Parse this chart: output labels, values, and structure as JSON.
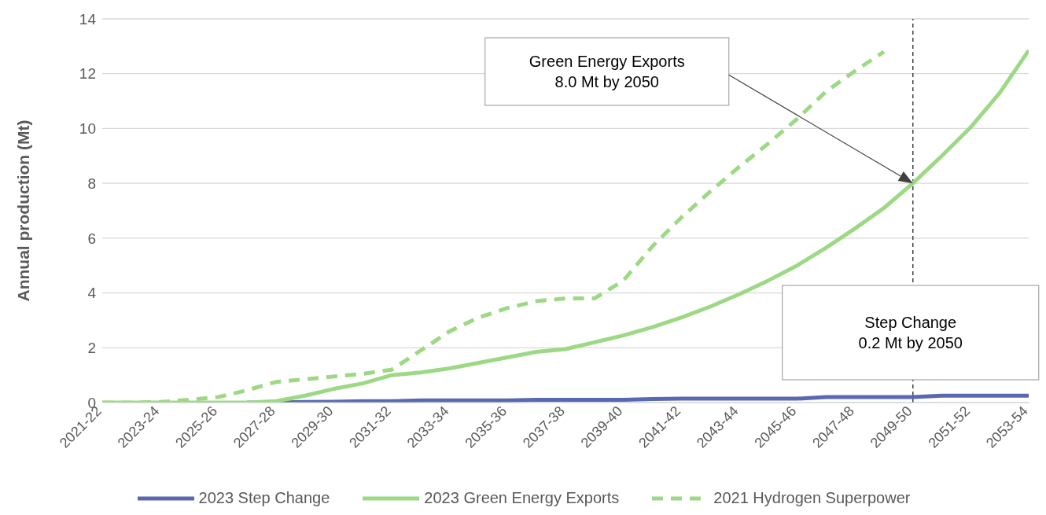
{
  "chart_data": {
    "type": "line",
    "ylabel": "Annual production (Mt)",
    "categories": [
      "2021-22",
      null,
      "2023-24",
      null,
      "2025-26",
      null,
      "2027-28",
      null,
      "2029-30",
      null,
      "2031-32",
      null,
      "2033-34",
      null,
      "2035-36",
      null,
      "2037-38",
      null,
      "2039-40",
      null,
      "2041-42",
      null,
      "2043-44",
      null,
      "2045-46",
      null,
      "2047-48",
      null,
      "2049-50",
      null,
      "2051-52",
      null,
      "2053-54"
    ],
    "series": [
      {
        "name": "2023 Step Change",
        "color": "#5a68b1",
        "line_style": "solid",
        "values": [
          null,
          null,
          null,
          null,
          null,
          0,
          0,
          0.02,
          0.03,
          0.05,
          0.05,
          0.08,
          0.08,
          0.08,
          0.08,
          0.1,
          0.1,
          0.1,
          0.1,
          0.13,
          0.14,
          0.14,
          0.14,
          0.14,
          0.14,
          0.2,
          0.2,
          0.2,
          0.2,
          0.25,
          0.25,
          0.25,
          0.25
        ]
      },
      {
        "name": "2023 Green Energy Exports",
        "color": "#9dd985",
        "line_style": "solid",
        "values": [
          0,
          0,
          0,
          0,
          0,
          0,
          0.05,
          0.25,
          0.5,
          0.7,
          1.0,
          1.1,
          1.25,
          1.45,
          1.65,
          1.85,
          1.95,
          2.2,
          2.45,
          2.75,
          3.1,
          3.5,
          3.95,
          4.45,
          5.0,
          5.65,
          6.35,
          7.1,
          8.0,
          9.0,
          10.05,
          11.3,
          12.85
        ]
      },
      {
        "name": "2021 Hydrogen Superpower",
        "color": "#9dd985",
        "line_style": "dashed",
        "values": [
          0,
          0,
          0.02,
          0.1,
          0.2,
          0.45,
          0.75,
          0.85,
          0.95,
          1.05,
          1.2,
          1.9,
          2.6,
          3.1,
          3.45,
          3.7,
          3.8,
          3.8,
          4.45,
          5.7,
          6.75,
          7.7,
          8.6,
          9.45,
          10.35,
          11.35,
          12.1,
          12.8,
          null,
          null,
          null,
          null,
          null
        ]
      }
    ],
    "ylim": [
      0,
      14
    ],
    "yticks": [
      0,
      2,
      4,
      6,
      8,
      10,
      12,
      14
    ],
    "grid": "y",
    "legend": "bottom",
    "marker": "none",
    "ref_lines": [
      {
        "axis": "x",
        "value": "2049-50",
        "color": "#404040",
        "line_style": "dashed"
      }
    ],
    "annotations": [
      "Green Energy Exports\n8.0 Mt by 2050",
      "Step Change\n0.2 Mt by 2050"
    ]
  }
}
